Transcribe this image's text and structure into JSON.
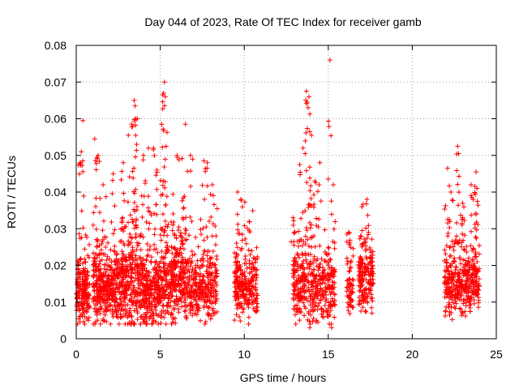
{
  "chart_data": {
    "type": "scatter",
    "title": "Day 044 of 2023, Rate Of TEC Index for receiver gamb",
    "xlabel": "GPS time / hours",
    "ylabel": "ROTI / TECUs",
    "xlim": [
      0,
      25
    ],
    "ylim": [
      0,
      0.08
    ],
    "xticks": [
      0,
      5,
      10,
      15,
      20,
      25
    ],
    "xtick_labels": [
      "0",
      "5",
      "10",
      "15",
      "20",
      "25"
    ],
    "yticks": [
      0,
      0.01,
      0.02,
      0.03,
      0.04,
      0.05,
      0.06,
      0.07,
      0.08
    ],
    "ytick_labels": [
      "0",
      "0.01",
      "0.02",
      "0.03",
      "0.04",
      "0.05",
      "0.06",
      "0.07",
      "0.08"
    ],
    "grid": true,
    "marker": "+",
    "colors": {
      "series": "#ff0000",
      "grid": "#a0a0a0",
      "axis": "#000000"
    },
    "clusters": [
      {
        "x_range": [
          0.0,
          0.8
        ],
        "y_base": 0.013,
        "y_spread": 0.009,
        "count": 180
      },
      {
        "x_range": [
          1.0,
          2.7
        ],
        "y_base": 0.014,
        "y_spread": 0.01,
        "count": 380
      },
      {
        "x_range": [
          2.7,
          4.0
        ],
        "y_base": 0.015,
        "y_spread": 0.012,
        "count": 300
      },
      {
        "x_range": [
          4.0,
          5.0
        ],
        "y_base": 0.013,
        "y_spread": 0.01,
        "count": 240
      },
      {
        "x_range": [
          5.0,
          6.5
        ],
        "y_base": 0.016,
        "y_spread": 0.012,
        "count": 340
      },
      {
        "x_range": [
          6.5,
          8.4
        ],
        "y_base": 0.014,
        "y_spread": 0.01,
        "count": 320
      },
      {
        "x_range": [
          9.4,
          10.8
        ],
        "y_base": 0.015,
        "y_spread": 0.009,
        "count": 250
      },
      {
        "x_range": [
          12.9,
          15.4
        ],
        "y_base": 0.014,
        "y_spread": 0.01,
        "count": 420
      },
      {
        "x_range": [
          16.1,
          16.5
        ],
        "y_base": 0.012,
        "y_spread": 0.007,
        "count": 60
      },
      {
        "x_range": [
          16.8,
          17.7
        ],
        "y_base": 0.017,
        "y_spread": 0.009,
        "count": 180
      },
      {
        "x_range": [
          21.9,
          24.0
        ],
        "y_base": 0.015,
        "y_spread": 0.009,
        "count": 380
      }
    ],
    "peaks": [
      {
        "x": 0.25,
        "y": 0.048
      },
      {
        "x": 0.3,
        "y": 0.051
      },
      {
        "x": 0.4,
        "y": 0.0595
      },
      {
        "x": 1.1,
        "y": 0.0545
      },
      {
        "x": 1.3,
        "y": 0.05
      },
      {
        "x": 1.6,
        "y": 0.042
      },
      {
        "x": 2.2,
        "y": 0.045
      },
      {
        "x": 2.8,
        "y": 0.048
      },
      {
        "x": 3.1,
        "y": 0.0555
      },
      {
        "x": 3.45,
        "y": 0.065
      },
      {
        "x": 3.5,
        "y": 0.0635
      },
      {
        "x": 3.55,
        "y": 0.06
      },
      {
        "x": 3.3,
        "y": 0.0585
      },
      {
        "x": 3.6,
        "y": 0.053
      },
      {
        "x": 4.0,
        "y": 0.05
      },
      {
        "x": 4.3,
        "y": 0.052
      },
      {
        "x": 4.6,
        "y": 0.052
      },
      {
        "x": 4.8,
        "y": 0.046
      },
      {
        "x": 5.15,
        "y": 0.0665
      },
      {
        "x": 5.2,
        "y": 0.067
      },
      {
        "x": 5.25,
        "y": 0.07
      },
      {
        "x": 5.3,
        "y": 0.066
      },
      {
        "x": 5.35,
        "y": 0.0525
      },
      {
        "x": 6.0,
        "y": 0.05
      },
      {
        "x": 6.5,
        "y": 0.0585
      },
      {
        "x": 6.8,
        "y": 0.05
      },
      {
        "x": 7.6,
        "y": 0.0485
      },
      {
        "x": 7.8,
        "y": 0.048
      },
      {
        "x": 8.1,
        "y": 0.042
      },
      {
        "x": 9.6,
        "y": 0.04
      },
      {
        "x": 9.8,
        "y": 0.038
      },
      {
        "x": 10.3,
        "y": 0.032
      },
      {
        "x": 12.9,
        "y": 0.033
      },
      {
        "x": 13.3,
        "y": 0.0475
      },
      {
        "x": 13.5,
        "y": 0.052
      },
      {
        "x": 13.7,
        "y": 0.0675
      },
      {
        "x": 13.75,
        "y": 0.0645
      },
      {
        "x": 13.8,
        "y": 0.063
      },
      {
        "x": 13.85,
        "y": 0.066
      },
      {
        "x": 13.9,
        "y": 0.0565
      },
      {
        "x": 14.0,
        "y": 0.0555
      },
      {
        "x": 14.2,
        "y": 0.043
      },
      {
        "x": 14.5,
        "y": 0.048
      },
      {
        "x": 15.1,
        "y": 0.076
      },
      {
        "x": 15.3,
        "y": 0.042
      },
      {
        "x": 16.2,
        "y": 0.029
      },
      {
        "x": 17.0,
        "y": 0.036
      },
      {
        "x": 17.3,
        "y": 0.038
      },
      {
        "x": 22.1,
        "y": 0.0465
      },
      {
        "x": 22.3,
        "y": 0.04
      },
      {
        "x": 22.7,
        "y": 0.0525
      },
      {
        "x": 22.75,
        "y": 0.0505
      },
      {
        "x": 23.0,
        "y": 0.037
      },
      {
        "x": 23.5,
        "y": 0.042
      },
      {
        "x": 23.8,
        "y": 0.0455
      },
      {
        "x": 23.85,
        "y": 0.041
      }
    ],
    "lows": [
      {
        "x": 13.9,
        "y": 0.003
      },
      {
        "x": 4.2,
        "y": 0.004
      },
      {
        "x": 15.2,
        "y": 0.003
      },
      {
        "x": 1.6,
        "y": 0.005
      },
      {
        "x": 9.7,
        "y": 0.006
      }
    ]
  }
}
